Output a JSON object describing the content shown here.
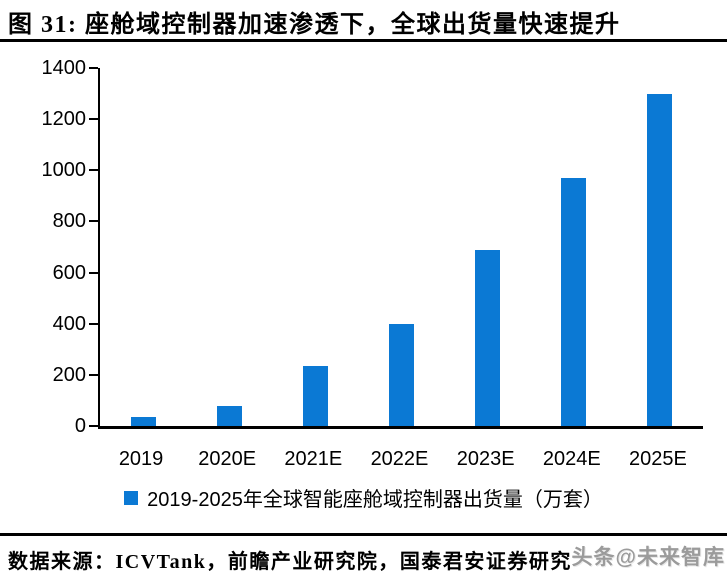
{
  "header": {
    "title": "图 31:  座舱域控制器加速渗透下，全球出货量快速提升"
  },
  "chart_data": {
    "type": "bar",
    "categories": [
      "2019",
      "2020E",
      "2021E",
      "2022E",
      "2023E",
      "2024E",
      "2025E"
    ],
    "values": [
      35,
      80,
      235,
      400,
      690,
      970,
      1300
    ],
    "series_name": "2019-2025年全球智能座舱域控制器出货量（万套）",
    "title": "",
    "xlabel": "",
    "ylabel": "",
    "ylim": [
      0,
      1400
    ],
    "ytick_step": 200,
    "grid": false,
    "legend_position": "bottom",
    "bar_color": "#0B79D4",
    "axis_color": "#000000"
  },
  "footer": {
    "source": "数据来源：ICVTank，前瞻产业研究院，国泰君安证券研究",
    "watermark": "头条@未来智库"
  }
}
